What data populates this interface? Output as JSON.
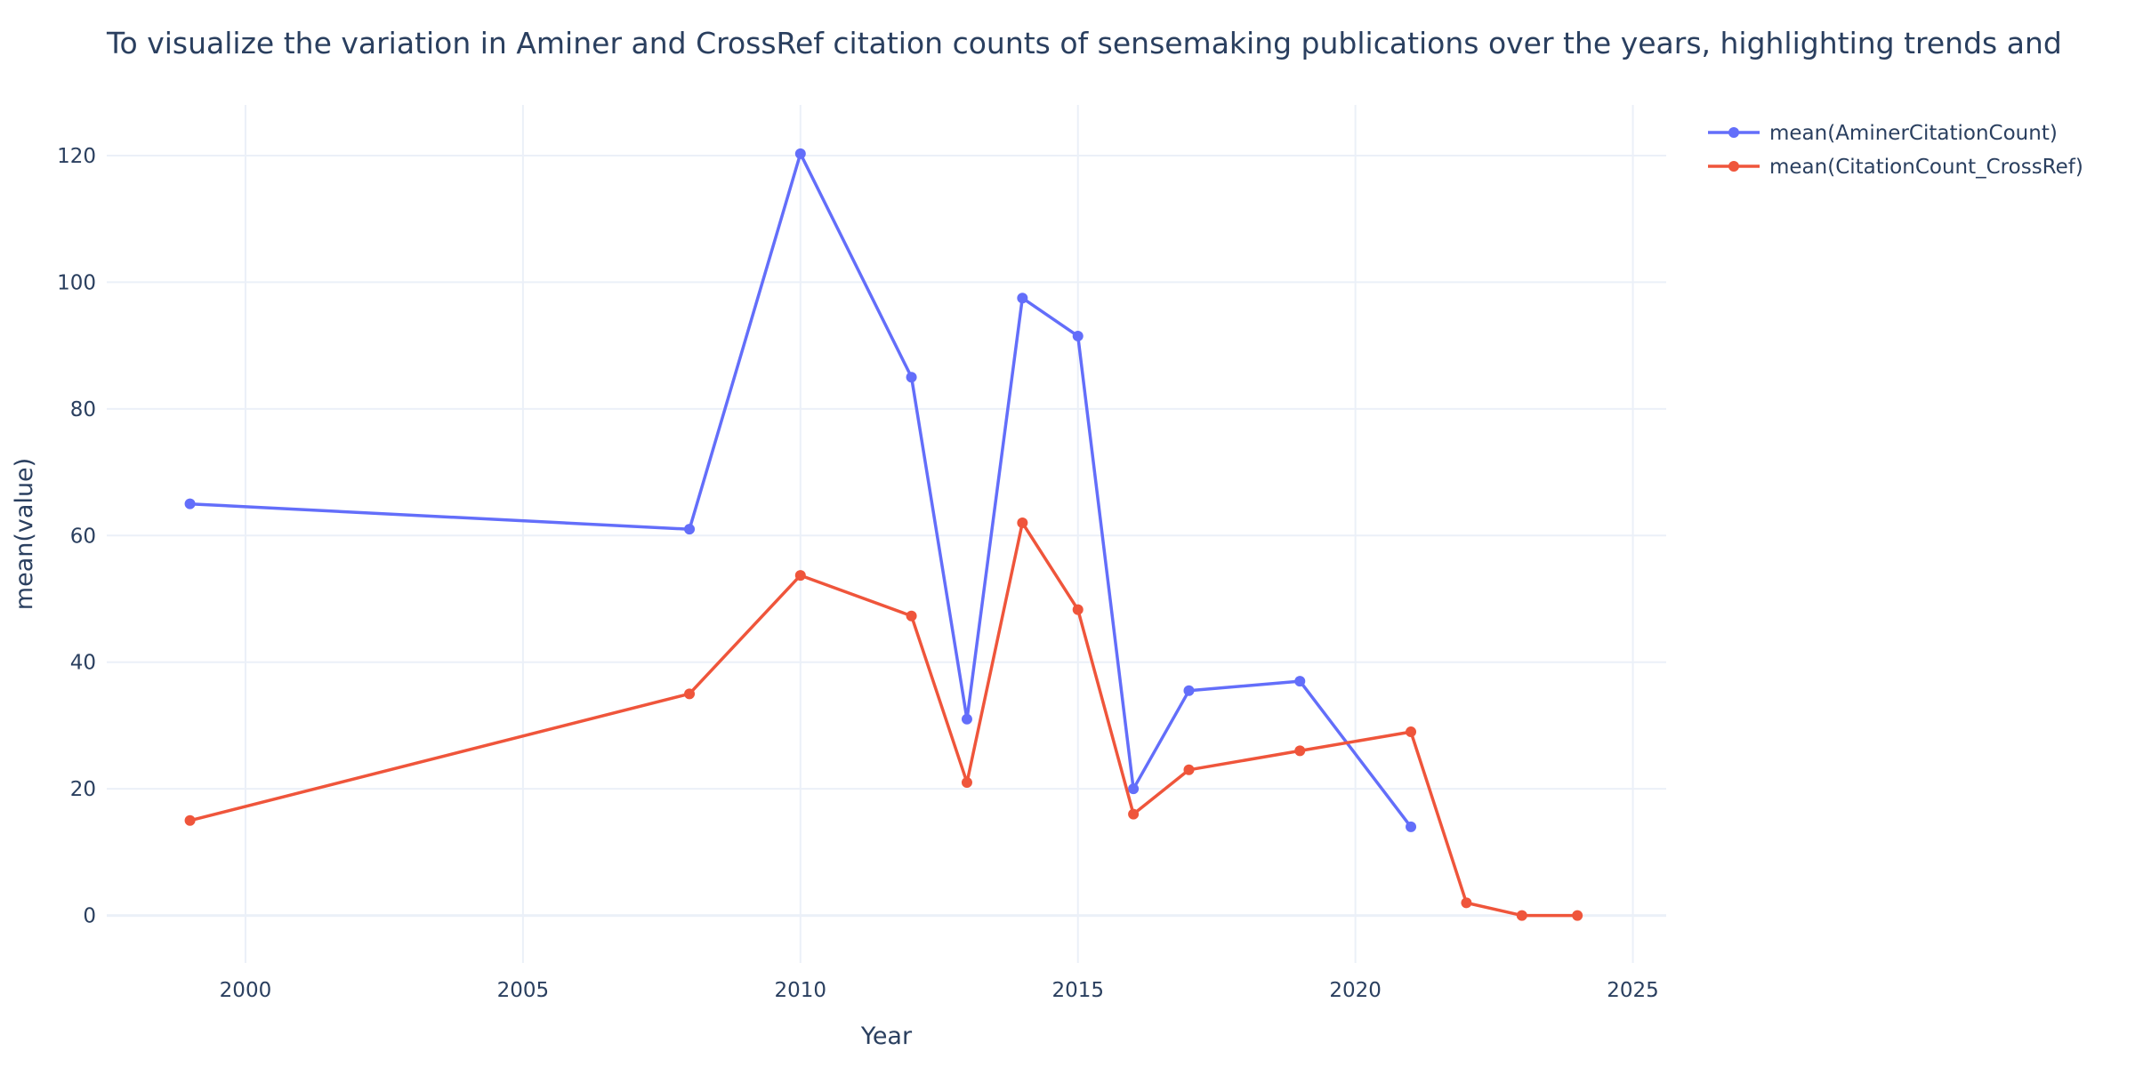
{
  "chart_data": {
    "type": "line",
    "title": "To visualize the variation in Aminer and CrossRef citation counts of sensemaking publications over the years, highlighting trends and",
    "xlabel": "Year",
    "ylabel": "mean(value)",
    "xlim": [
      1997.5,
      2025.6
    ],
    "ylim": [
      -7.5,
      128
    ],
    "xticks": [
      2000,
      2005,
      2010,
      2015,
      2020,
      2025
    ],
    "yticks": [
      0,
      20,
      40,
      60,
      80,
      100,
      120
    ],
    "grid": true,
    "legend_position": "top-right",
    "series": [
      {
        "name": "mean(AminerCitationCount)",
        "color": "#636efa",
        "x": [
          1999,
          2008,
          2010,
          2012,
          2013,
          2014,
          2015,
          2016,
          2017,
          2019,
          2021
        ],
        "y": [
          65,
          61,
          120.3,
          85,
          31,
          97.5,
          91.5,
          20,
          35.5,
          37,
          14
        ]
      },
      {
        "name": "mean(CitationCount_CrossRef)",
        "color": "#ef553b",
        "x": [
          1999,
          2008,
          2010,
          2012,
          2013,
          2014,
          2015,
          2016,
          2017,
          2019,
          2021,
          2022,
          2023,
          2024
        ],
        "y": [
          15,
          35,
          53.7,
          47.3,
          21,
          62,
          48.3,
          16,
          23,
          26,
          29,
          2,
          0,
          0
        ]
      }
    ]
  }
}
